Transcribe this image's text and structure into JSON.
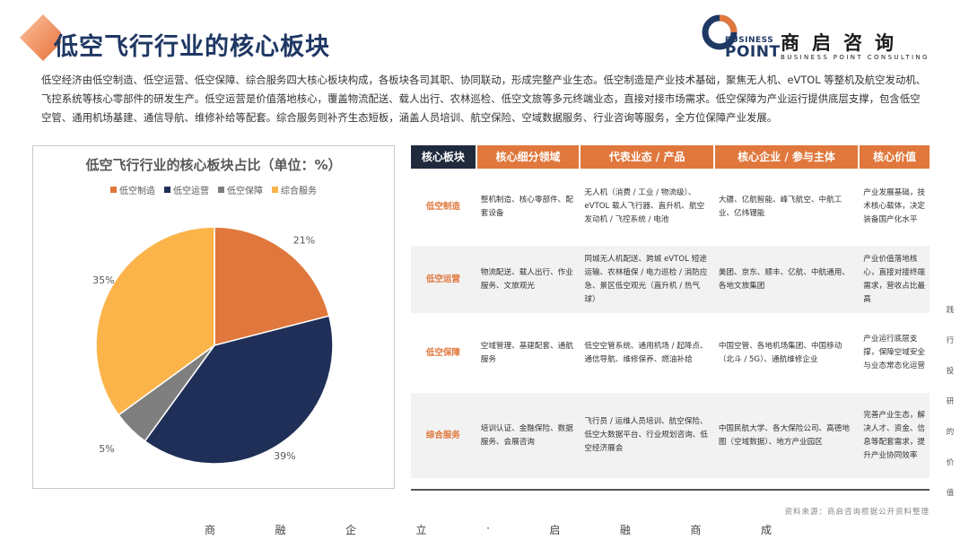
{
  "page": {
    "title": "低空飞行行业的核心板块",
    "intro": "低空经济由低空制造、低空运营、低空保障、综合服务四大核心板块构成，各板块各司其职、协同联动，形成完整产业生态。低空制造是产业技术基础，聚焦无人机、eVTOL 等整机及航空发动机、飞控系统等核心零部件的研发生产。低空运营是价值落地核心，覆盖物流配送、载人出行、农林巡检、低空文旅等多元终端业态，直接对接市场需求。低空保障为产业运行提供底层支撑，包含低空空管、通用机场基建、通信导航、维修补给等配套。综合服务则补齐生态短板，涵盖人员培训、航空保险、空域数据服务、行业咨询等服务，全方位保障产业发展。"
  },
  "logo": {
    "business": "BUSINESS",
    "point": "POINT",
    "cn": "商启咨询",
    "en": "BUSINESS POINT CONSULTING"
  },
  "chart_data": {
    "type": "pie",
    "title": "低空飞行行业的核心板块占比（单位：%）",
    "categories": [
      "低空制造",
      "低空运营",
      "低空保障",
      "综合服务"
    ],
    "values": [
      21,
      39,
      5,
      35
    ],
    "labels": [
      "21%",
      "39%",
      "5%",
      "35%"
    ],
    "colors": [
      "#e0773c",
      "#1f2f57",
      "#7f7f7f",
      "#fbb44a"
    ],
    "legend_position": "top"
  },
  "table": {
    "headers": [
      "核心板块",
      "核心细分领域",
      "代表业态 / 产品",
      "核心企业 / 参与主体",
      "核心价值"
    ],
    "rows": [
      {
        "sector": "低空制造",
        "fields": "整机制造、核心零部件、配套设备",
        "products": "无人机（消费 / 工业 / 物流级）、eVTOL 载人飞行器、直升机、航空发动机 / 飞控系统 / 电池",
        "companies": "大疆、亿航智能、峰飞航空、中航工业、亿纬锂能",
        "value": "产业发展基础，技术核心载体，决定装备国产化水平"
      },
      {
        "sector": "低空运营",
        "fields": "物流配送、载人出行、作业服务、文旅观光",
        "products": "同城无人机配送、跨城 eVTOL 短途运输、农林植保 / 电力巡检 / 消防应急、景区低空观光（直升机 / 热气球）",
        "companies": "美团、京东、顺丰、亿航、中航通用、各地文旅集团",
        "value": "产业价值落地核心，直接对接终端需求，营收占比最高"
      },
      {
        "sector": "低空保障",
        "fields": "空域管理、基建配套、通航服务",
        "products": "低空空管系统、通用机场 / 起降点、通信导航、维修保养、燃油补给",
        "companies": "中国空管、各地机场集团、中国移动（北斗 / 5G）、通航维修企业",
        "value": "产业运行底层支撑，保障空域安全与业态常态化运营"
      },
      {
        "sector": "综合服务",
        "fields": "培训认证、金融保险、数据服务、会展咨询",
        "products": "飞行员 / 运维人员培训、航空保险、低空大数据平台、行业规划咨询、低空经济展会",
        "companies": "中国民航大学、各大保险公司、高德地图（空域数据）、地方产业园区",
        "value": "完善产业生态，解决人才、资金、信息等配套需求，提升产业协同效率"
      }
    ]
  },
  "source": "资料来源：商启咨询根据公开资料整理",
  "footer": [
    "商",
    "融",
    "企",
    "立",
    "·",
    "启",
    "融",
    "商",
    "成"
  ],
  "side_text": [
    "践",
    "行",
    "投",
    "研",
    "的",
    "价",
    "值"
  ]
}
